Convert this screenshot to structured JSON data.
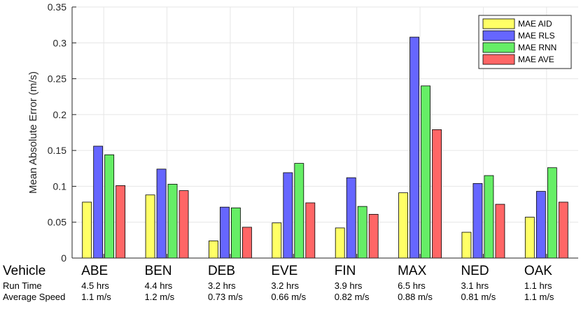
{
  "chart_data": {
    "type": "bar",
    "categories": [
      "ABE",
      "BEN",
      "DEB",
      "EVE",
      "FIN",
      "MAX",
      "NED",
      "OAK"
    ],
    "series": [
      {
        "name": "MAE AID",
        "color": "#ffff66",
        "values": [
          0.078,
          0.088,
          0.024,
          0.049,
          0.042,
          0.091,
          0.036,
          0.057
        ]
      },
      {
        "name": "MAE RLS",
        "color": "#6666ff",
        "values": [
          0.156,
          0.124,
          0.071,
          0.119,
          0.112,
          0.308,
          0.104,
          0.093
        ]
      },
      {
        "name": "MAE RNN",
        "color": "#66ee66",
        "values": [
          0.144,
          0.103,
          0.07,
          0.132,
          0.072,
          0.24,
          0.115,
          0.126
        ]
      },
      {
        "name": "MAE AVE",
        "color": "#ff6666",
        "values": [
          0.101,
          0.094,
          0.043,
          0.077,
          0.061,
          0.179,
          0.075,
          0.078
        ]
      }
    ],
    "ylabel": "Mean Absolute Error (m/s)",
    "ylim": [
      0,
      0.35
    ],
    "yticks": [
      "0",
      "0.05",
      "0.1",
      "0.15",
      "0.2",
      "0.25",
      "0.3",
      "0.35"
    ],
    "grid": true,
    "legend_position": "top-right"
  },
  "table": {
    "row_labels": {
      "vehicle": "Vehicle",
      "run_time": "Run Time",
      "avg_speed": "Average Speed"
    },
    "run_time": [
      "4.5 hrs",
      "4.4 hrs",
      "3.2 hrs",
      "3.2 hrs",
      "3.9 hrs",
      "6.5 hrs",
      "3.1 hrs",
      "1.1 hrs"
    ],
    "avg_speed": [
      "1.1 m/s",
      "1.2 m/s",
      "0.73 m/s",
      "0.66 m/s",
      "0.82 m/s",
      "0.88 m/s",
      "0.81 m/s",
      "1.1 m/s"
    ]
  }
}
